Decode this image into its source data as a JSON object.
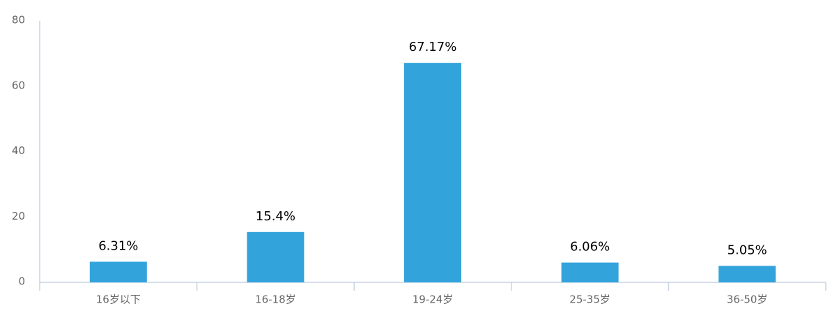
{
  "chart_data": {
    "type": "bar",
    "categories": [
      "16岁以下",
      "16-18岁",
      "19-24岁",
      "25-35岁",
      "36-50岁"
    ],
    "values": [
      6.31,
      15.4,
      67.17,
      6.06,
      5.05
    ],
    "value_labels": [
      "6.31%",
      "15.4%",
      "67.17%",
      "6.06%",
      "5.05%"
    ],
    "color": "#33a3dc",
    "ylim": [
      0,
      80
    ],
    "yticks": [
      0,
      20,
      40,
      60,
      80
    ],
    "grid": false
  }
}
